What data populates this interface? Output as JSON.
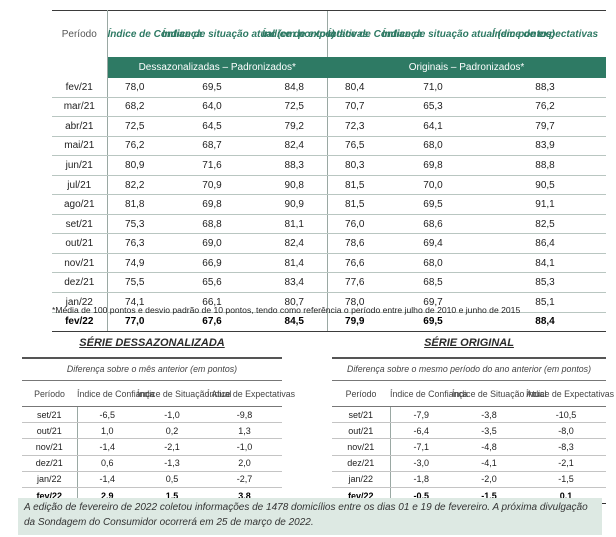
{
  "main_table": {
    "period_header": "Período",
    "column_headers": [
      "Índice de Confiança",
      "Índice de situação atual (em pontos)",
      "Índice de expectativas",
      "Índice de Confiança",
      "Índice de situação atual (em pontos)",
      "Índice de expectativas"
    ],
    "group_seasonal": "Dessazonalizadas – Padronizados*",
    "group_original": "Originais – Padronizados*",
    "rows": [
      [
        "fev/21",
        "78,0",
        "69,5",
        "84,8",
        "80,4",
        "71,0",
        "88,3"
      ],
      [
        "mar/21",
        "68,2",
        "64,0",
        "72,5",
        "70,7",
        "65,3",
        "76,2"
      ],
      [
        "abr/21",
        "72,5",
        "64,5",
        "79,2",
        "72,3",
        "64,1",
        "79,7"
      ],
      [
        "mai/21",
        "76,2",
        "68,7",
        "82,4",
        "76,5",
        "68,0",
        "83,9"
      ],
      [
        "jun/21",
        "80,9",
        "71,6",
        "88,3",
        "80,3",
        "69,8",
        "88,8"
      ],
      [
        "jul/21",
        "82,2",
        "70,9",
        "90,8",
        "81,5",
        "70,0",
        "90,5"
      ],
      [
        "ago/21",
        "81,8",
        "69,8",
        "90,9",
        "81,5",
        "69,5",
        "91,1"
      ],
      [
        "set/21",
        "75,3",
        "68,8",
        "81,1",
        "76,0",
        "68,6",
        "82,5"
      ],
      [
        "out/21",
        "76,3",
        "69,0",
        "82,4",
        "78,6",
        "69,4",
        "86,4"
      ],
      [
        "nov/21",
        "74,9",
        "66,9",
        "81,4",
        "76,6",
        "68,0",
        "84,1"
      ],
      [
        "dez/21",
        "75,5",
        "65,6",
        "83,4",
        "77,6",
        "68,5",
        "85,3"
      ],
      [
        "jan/22",
        "74,1",
        "66,1",
        "80,7",
        "78,0",
        "69,7",
        "85,1"
      ],
      [
        "fev/22",
        "77,0",
        "67,6",
        "84,5",
        "79,9",
        "69,5",
        "88,4"
      ]
    ],
    "footnote": "*Média de 100 pontos e desvio padrão de 10 pontos, tendo como referência o período entre julho de 2010 e junho de 2015"
  },
  "left_panel": {
    "title": "SÉRIE DESSAZONALIZADA",
    "subtitle": "Diferença sobre o mês anterior (em pontos)",
    "headers": [
      "Período",
      "Índice de Confiança",
      "Índice de Situação Atual",
      "Índice de Expectativas"
    ],
    "rows": [
      [
        "set/21",
        "-6,5",
        "-1,0",
        "-9,8"
      ],
      [
        "out/21",
        "1,0",
        "0,2",
        "1,3"
      ],
      [
        "nov/21",
        "-1,4",
        "-2,1",
        "-1,0"
      ],
      [
        "dez/21",
        "0,6",
        "-1,3",
        "2,0"
      ],
      [
        "jan/22",
        "-1,4",
        "0,5",
        "-2,7"
      ],
      [
        "fev/22",
        "2,9",
        "1,5",
        "3,8"
      ]
    ]
  },
  "right_panel": {
    "title": "SÉRIE ORIGINAL",
    "subtitle": "Diferença sobre o mesmo período do ano anterior (em pontos)",
    "headers": [
      "Período",
      "Índice de Confiança",
      "Índice de Situação Atual",
      "Índice de Expectativas"
    ],
    "rows": [
      [
        "set/21",
        "-7,9",
        "-3,8",
        "-10,5"
      ],
      [
        "out/21",
        "-6,4",
        "-3,5",
        "-8,0"
      ],
      [
        "nov/21",
        "-7,1",
        "-4,8",
        "-8,3"
      ],
      [
        "dez/21",
        "-3,0",
        "-4,1",
        "-2,1"
      ],
      [
        "jan/22",
        "-1,8",
        "-2,0",
        "-1,5"
      ],
      [
        "fev/22",
        "-0,5",
        "-1,5",
        "0,1"
      ]
    ]
  },
  "note": "A edição de fevereiro de 2022 coletou informações de 1478 domicílios entre os dias 01 e 19 de fevereiro. A próxima divulgação da Sondagem do Consumidor ocorrerá em 25 de março de 2022.",
  "colors": {
    "accent_green": "#2e7a64",
    "note_background": "#dde9e3"
  }
}
